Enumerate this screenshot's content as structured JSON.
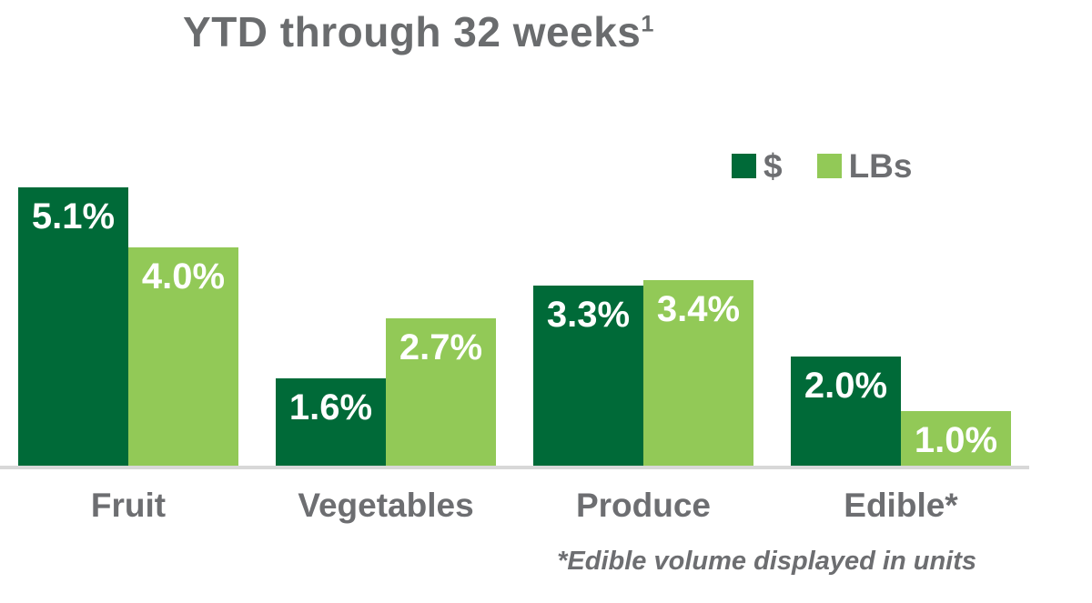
{
  "title": {
    "text": "YTD through 32 weeks",
    "superscript": "1"
  },
  "footnote": "*Edible volume displayed in units",
  "colors": {
    "dollars_green": "#006A38",
    "lbs_green": "#92C957",
    "text_gray": "#6D6E71",
    "title_gray": "#6A6C6E",
    "axis_line_gray": "#D8D8D8",
    "bar_value_white": "#FFFFFF"
  },
  "chart_data": {
    "type": "bar",
    "title": "YTD through 32 weeks",
    "title_superscript": "1",
    "categories": [
      "Fruit",
      "Vegetables",
      "Produce",
      "Edible*"
    ],
    "series": [
      {
        "name": "$",
        "color": "#006A38",
        "values": [
          5.1,
          1.6,
          3.3,
          2.0
        ],
        "labels": [
          "5.1%",
          "1.6%",
          "3.3%",
          "2.0%"
        ]
      },
      {
        "name": "LBs",
        "color": "#92C957",
        "values": [
          4.0,
          2.7,
          3.4,
          1.0
        ],
        "labels": [
          "4.0%",
          "2.7%",
          "3.4%",
          "1.0%"
        ]
      }
    ],
    "unit": "percent",
    "xlabel": "",
    "ylabel": "",
    "ylim": [
      0,
      5.5
    ],
    "grid": false,
    "axes_ticks_visible": false,
    "legend_position": "top-right",
    "value_labels": "inside-top",
    "footnote": "*Edible volume displayed in units"
  }
}
